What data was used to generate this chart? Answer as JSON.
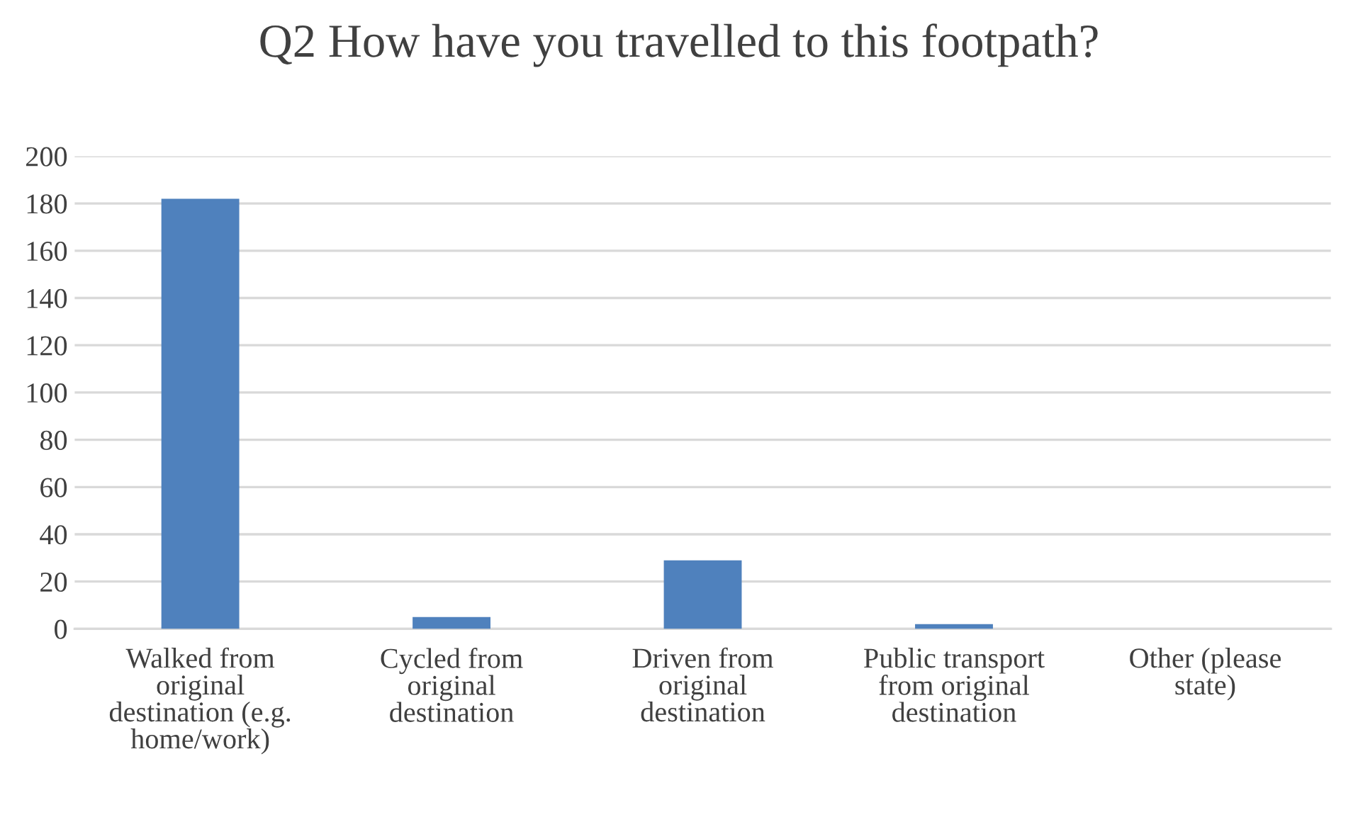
{
  "chart_data": {
    "type": "bar",
    "title": "Q2 How have you travelled to this footpath?",
    "categories": [
      "Walked from original destination (e.g. home/work)",
      "Cycled from original destination",
      "Driven from original destination",
      "Public transport from original destination",
      "Other (please state)"
    ],
    "values": [
      182,
      5,
      29,
      2,
      0
    ],
    "color": "#4f81bd",
    "ylim": [
      0,
      200
    ],
    "yticks": [
      0,
      20,
      40,
      60,
      80,
      100,
      120,
      140,
      160,
      180,
      200
    ],
    "grid": "y"
  }
}
